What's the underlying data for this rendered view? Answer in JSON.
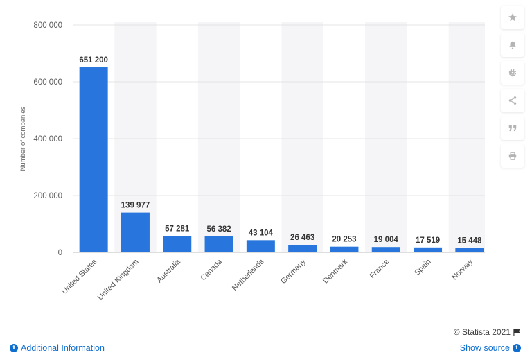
{
  "chart_data": {
    "type": "bar",
    "categories": [
      "United States",
      "United Kingdom",
      "Australia",
      "Canada",
      "Netherlands",
      "Germany",
      "Denmark",
      "France",
      "Spain",
      "Norway"
    ],
    "values": [
      651200,
      139977,
      57281,
      56382,
      43104,
      26463,
      20253,
      19004,
      17519,
      15448
    ],
    "value_labels": [
      "651 200",
      "139 977",
      "57 281",
      "56 382",
      "43 104",
      "26 463",
      "20 253",
      "19 004",
      "17 519",
      "15 448"
    ],
    "ylabel": "Number of companies",
    "ylim": [
      0,
      800000
    ],
    "yticks": [
      0,
      200000,
      400000,
      600000,
      800000
    ],
    "ytick_labels": [
      "0",
      "200 000",
      "400 000",
      "600 000",
      "800 000"
    ],
    "bar_color": "#2876dd",
    "grid": true
  },
  "sidebar": {
    "icons": [
      "star-icon",
      "bell-icon",
      "gear-icon",
      "share-icon",
      "quote-icon",
      "print-icon"
    ]
  },
  "footer": {
    "copyright": "© Statista 2021",
    "additional_info": "Additional Information",
    "show_source": "Show source"
  },
  "colors": {
    "link": "#0d6ecf",
    "band": "#f5f5f7",
    "icon": "#b4b4b4"
  }
}
